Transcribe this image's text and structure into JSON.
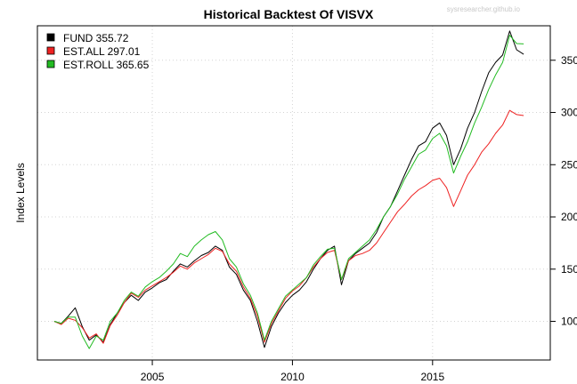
{
  "chart_data": {
    "type": "line",
    "title": "Historical Backtest Of VISVX",
    "watermark": "sysresearcher.github.io",
    "xlabel": "",
    "ylabel": "Index Levels",
    "x_ticks": [
      "2005",
      "2010",
      "2015"
    ],
    "y_ticks": [
      "100",
      "150",
      "200",
      "250",
      "300",
      "350"
    ],
    "xlim": [
      2000.9,
      2019.2
    ],
    "ylim": [
      63,
      383
    ],
    "grid": true,
    "legend_position": "top-left",
    "legend": [
      "FUND 355.72",
      "EST.ALL 297.01",
      "EST.ROLL 365.65"
    ],
    "x": [
      2001.5,
      2001.75,
      2002.0,
      2002.25,
      2002.5,
      2002.75,
      2003.0,
      2003.25,
      2003.5,
      2003.75,
      2004.0,
      2004.25,
      2004.5,
      2004.75,
      2005.0,
      2005.25,
      2005.5,
      2005.75,
      2006.0,
      2006.25,
      2006.5,
      2006.75,
      2007.0,
      2007.25,
      2007.5,
      2007.75,
      2008.0,
      2008.25,
      2008.5,
      2008.75,
      2009.0,
      2009.25,
      2009.5,
      2009.75,
      2010.0,
      2010.25,
      2010.5,
      2010.75,
      2011.0,
      2011.25,
      2011.5,
      2011.75,
      2012.0,
      2012.25,
      2012.5,
      2012.75,
      2013.0,
      2013.25,
      2013.5,
      2013.75,
      2014.0,
      2014.25,
      2014.5,
      2014.75,
      2015.0,
      2015.25,
      2015.5,
      2015.75,
      2016.0,
      2016.25,
      2016.5,
      2016.75,
      2017.0,
      2017.25,
      2017.5,
      2017.75,
      2018.0,
      2018.25
    ],
    "series": [
      {
        "name": "FUND",
        "color": "#000000",
        "last": 355.72,
        "values": [
          100,
          98,
          105,
          113,
          95,
          82,
          87,
          80,
          97,
          108,
          118,
          125,
          120,
          128,
          132,
          137,
          140,
          148,
          155,
          152,
          158,
          163,
          166,
          172,
          168,
          152,
          145,
          130,
          120,
          100,
          75,
          95,
          108,
          118,
          125,
          130,
          138,
          150,
          160,
          168,
          172,
          135,
          158,
          165,
          170,
          175,
          185,
          200,
          210,
          225,
          240,
          255,
          268,
          272,
          285,
          290,
          278,
          250,
          265,
          285,
          300,
          320,
          338,
          348,
          355,
          378,
          360,
          355.72
        ]
      },
      {
        "name": "EST.ALL",
        "color": "#ee2222",
        "last": 297.01,
        "values": [
          100,
          97,
          103,
          101,
          94,
          84,
          88,
          79,
          96,
          106,
          118,
          127,
          123,
          130,
          134,
          138,
          142,
          147,
          153,
          150,
          156,
          160,
          164,
          170,
          167,
          155,
          148,
          133,
          122,
          105,
          80,
          98,
          110,
          122,
          129,
          134,
          142,
          152,
          160,
          166,
          168,
          140,
          158,
          163,
          165,
          168,
          175,
          185,
          195,
          205,
          212,
          220,
          226,
          230,
          235,
          237,
          228,
          210,
          225,
          240,
          250,
          262,
          270,
          280,
          288,
          302,
          298,
          297.01
        ]
      },
      {
        "name": "EST.ROLL",
        "color": "#22bb22",
        "last": 365.65,
        "values": [
          100,
          98,
          104,
          104,
          86,
          74,
          86,
          82,
          100,
          108,
          120,
          128,
          124,
          133,
          138,
          142,
          148,
          155,
          165,
          162,
          172,
          178,
          183,
          186,
          178,
          160,
          152,
          136,
          125,
          108,
          82,
          100,
          112,
          124,
          130,
          136,
          142,
          154,
          162,
          169,
          170,
          140,
          160,
          166,
          172,
          178,
          188,
          200,
          210,
          222,
          236,
          248,
          260,
          264,
          275,
          280,
          268,
          242,
          258,
          272,
          290,
          305,
          322,
          336,
          348,
          374,
          366,
          365.65
        ]
      }
    ]
  }
}
